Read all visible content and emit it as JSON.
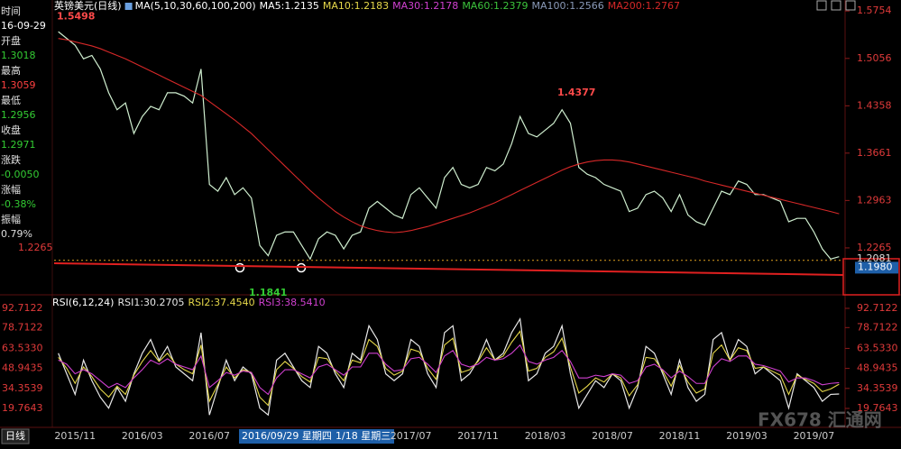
{
  "chart_data": [
    {
      "type": "line",
      "title": "英镑美元(日线)",
      "subtitle": "MA(5,10,30,60,100,200)",
      "ylim": [
        1.16,
        1.585
      ],
      "yticks": [
        1.5754,
        1.5056,
        1.4358,
        1.3661,
        1.2963,
        1.2265
      ],
      "series": [
        {
          "name": "MA5:1.2135",
          "color": "#cfeecf",
          "values": [
            1.545,
            1.535,
            1.525,
            1.505,
            1.51,
            1.49,
            1.455,
            1.43,
            1.44,
            1.395,
            1.42,
            1.435,
            1.43,
            1.455,
            1.455,
            1.45,
            1.44,
            1.49,
            1.32,
            1.31,
            1.33,
            1.305,
            1.315,
            1.3,
            1.23,
            1.215,
            1.245,
            1.25,
            1.25,
            1.23,
            1.21,
            1.24,
            1.25,
            1.245,
            1.225,
            1.245,
            1.25,
            1.285,
            1.295,
            1.285,
            1.275,
            1.27,
            1.305,
            1.315,
            1.3,
            1.285,
            1.33,
            1.345,
            1.32,
            1.315,
            1.32,
            1.345,
            1.34,
            1.35,
            1.38,
            1.42,
            1.395,
            1.39,
            1.4,
            1.41,
            1.43,
            1.41,
            1.345,
            1.335,
            1.33,
            1.32,
            1.315,
            1.31,
            1.28,
            1.285,
            1.305,
            1.31,
            1.3,
            1.28,
            1.305,
            1.275,
            1.265,
            1.26,
            1.285,
            1.31,
            1.305,
            1.325,
            1.32,
            1.305,
            1.305,
            1.3,
            1.295,
            1.265,
            1.27,
            1.27,
            1.25,
            1.225,
            1.21,
            1.2135
          ]
        },
        {
          "name": "MA200:1.2767",
          "color": "#d62828",
          "values": [
            1.535,
            1.533,
            1.53,
            1.527,
            1.524,
            1.52,
            1.515,
            1.51,
            1.505,
            1.499,
            1.493,
            1.487,
            1.481,
            1.475,
            1.469,
            1.463,
            1.457,
            1.451,
            1.442,
            1.433,
            1.424,
            1.415,
            1.405,
            1.395,
            1.383,
            1.371,
            1.359,
            1.347,
            1.335,
            1.323,
            1.311,
            1.3,
            1.29,
            1.28,
            1.272,
            1.265,
            1.259,
            1.255,
            1.252,
            1.25,
            1.249,
            1.25,
            1.252,
            1.255,
            1.258,
            1.262,
            1.266,
            1.27,
            1.274,
            1.278,
            1.283,
            1.288,
            1.293,
            1.299,
            1.305,
            1.311,
            1.317,
            1.323,
            1.329,
            1.335,
            1.341,
            1.346,
            1.35,
            1.353,
            1.355,
            1.356,
            1.356,
            1.355,
            1.353,
            1.35,
            1.347,
            1.344,
            1.341,
            1.338,
            1.335,
            1.332,
            1.329,
            1.325,
            1.322,
            1.319,
            1.316,
            1.313,
            1.31,
            1.307,
            1.304,
            1.301,
            1.298,
            1.295,
            1.292,
            1.289,
            1.286,
            1.283,
            1.28,
            1.2767
          ]
        }
      ],
      "legend_other": [
        {
          "name": "MA10:1.2183",
          "color": "#e6d84a"
        },
        {
          "name": "MA30:1.2178",
          "color": "#d040d0"
        },
        {
          "name": "MA60:1.2379",
          "color": "#3cc43c"
        },
        {
          "name": "MA100:1.2566",
          "color": "#8a9ab8"
        }
      ],
      "peak_labels": [
        1.5498,
        1.4377,
        1.1841
      ],
      "level_line": 1.2081,
      "cursor_price": {
        "value": 1.198,
        "label": "1.1980"
      },
      "trendline": [
        1.2038,
        1.1866
      ]
    },
    {
      "type": "line",
      "title": "RSI(6,12,24)",
      "categories": [
        null,
        null,
        "2015/11",
        null,
        null,
        null,
        null,
        null,
        null,
        null,
        "2016/03",
        null,
        null,
        null,
        null,
        null,
        null,
        null,
        "2016/07",
        null,
        null,
        null,
        null,
        null,
        null,
        null,
        null,
        null,
        null,
        null,
        null,
        null,
        null,
        null,
        null,
        null,
        null,
        null,
        null,
        null,
        null,
        null,
        "2017/07",
        null,
        null,
        null,
        null,
        null,
        null,
        null,
        "2017/11",
        null,
        null,
        null,
        null,
        null,
        null,
        null,
        "2018/03",
        null,
        null,
        null,
        null,
        null,
        null,
        null,
        "2018/07",
        null,
        null,
        null,
        null,
        null,
        null,
        null,
        "2018/11",
        null,
        null,
        null,
        null,
        null,
        null,
        null,
        "2019/03",
        null,
        null,
        null,
        null,
        null,
        null,
        null,
        "2019/07",
        null,
        null,
        null
      ],
      "ylim": [
        8.6,
        100.6
      ],
      "yticks": [
        92.7122,
        78.7122,
        {
          "value": 63.533,
          "label": "63.5330"
        },
        48.9435,
        34.3539,
        19.7643
      ],
      "series": [
        {
          "name": "RSI1:30.2705",
          "color": "#e8e8e8",
          "values": [
            60,
            45,
            30,
            55,
            40,
            28,
            20,
            35,
            25,
            45,
            60,
            70,
            55,
            65,
            50,
            45,
            40,
            75,
            15,
            35,
            55,
            40,
            50,
            45,
            20,
            15,
            55,
            60,
            50,
            40,
            35,
            65,
            60,
            45,
            35,
            60,
            55,
            80,
            70,
            45,
            40,
            45,
            70,
            65,
            45,
            35,
            75,
            80,
            40,
            45,
            55,
            70,
            55,
            60,
            75,
            85,
            40,
            45,
            60,
            65,
            80,
            45,
            20,
            30,
            40,
            35,
            45,
            40,
            20,
            35,
            65,
            60,
            45,
            30,
            55,
            35,
            25,
            30,
            70,
            75,
            55,
            70,
            65,
            45,
            50,
            45,
            40,
            20,
            45,
            40,
            35,
            25,
            30,
            30.2705
          ]
        },
        {
          "name": "RSI2:37.4540",
          "color": "#e6d84a",
          "values": [
            57,
            49,
            38,
            50,
            43,
            34,
            28,
            36,
            30,
            44,
            54,
            62,
            54,
            60,
            52,
            48,
            45,
            66,
            25,
            37,
            50,
            42,
            48,
            46,
            28,
            22,
            48,
            54,
            49,
            43,
            39,
            57,
            56,
            47,
            40,
            55,
            53,
            70,
            65,
            49,
            44,
            47,
            63,
            61,
            49,
            41,
            66,
            71,
            46,
            48,
            54,
            64,
            55,
            58,
            68,
            76,
            47,
            49,
            57,
            61,
            71,
            50,
            31,
            36,
            42,
            39,
            45,
            42,
            29,
            37,
            57,
            56,
            47,
            36,
            51,
            39,
            31,
            34,
            60,
            66,
            55,
            64,
            62,
            49,
            50,
            47,
            44,
            30,
            44,
            41,
            38,
            32,
            34,
            37.454
          ]
        },
        {
          "name": "RSI3:38.5410",
          "color": "#d040d0",
          "values": [
            55,
            52,
            45,
            48,
            45,
            40,
            35,
            38,
            35,
            42,
            48,
            55,
            52,
            56,
            52,
            50,
            48,
            58,
            35,
            40,
            46,
            44,
            47,
            46,
            35,
            30,
            42,
            48,
            48,
            45,
            42,
            50,
            52,
            48,
            44,
            50,
            50,
            60,
            60,
            52,
            47,
            48,
            56,
            57,
            52,
            46,
            58,
            62,
            52,
            50,
            52,
            57,
            55,
            56,
            60,
            66,
            54,
            52,
            55,
            57,
            62,
            54,
            42,
            42,
            44,
            43,
            45,
            44,
            38,
            40,
            50,
            52,
            48,
            42,
            47,
            43,
            38,
            38,
            50,
            56,
            54,
            58,
            58,
            52,
            51,
            49,
            47,
            39,
            42,
            42,
            40,
            37,
            38,
            38.541
          ]
        }
      ]
    }
  ],
  "info_panel": [
    {
      "label": "时间",
      "value": "16-09-29",
      "color": "#ffffff"
    },
    {
      "label": "开盘",
      "value": "1.3018",
      "color": "#33cc33"
    },
    {
      "label": "最高",
      "value": "1.3059",
      "color": "#ff4040"
    },
    {
      "label": "最低",
      "value": "1.2956",
      "color": "#33cc33"
    },
    {
      "label": "收盘",
      "value": "1.2971",
      "color": "#33cc33"
    },
    {
      "label": "涨跌",
      "value": "-0.0050",
      "color": "#33cc33"
    },
    {
      "label": "涨幅",
      "value": "-0.38%",
      "color": "#33cc33"
    },
    {
      "label": "振幅",
      "value": "0.79%",
      "color": "#dddddd"
    }
  ],
  "footer": {
    "period": "日线",
    "cursor_date": "2016/09/29 星期四",
    "cursor_date2": "1/18 星期三",
    "watermark": "FX678 汇通网"
  }
}
